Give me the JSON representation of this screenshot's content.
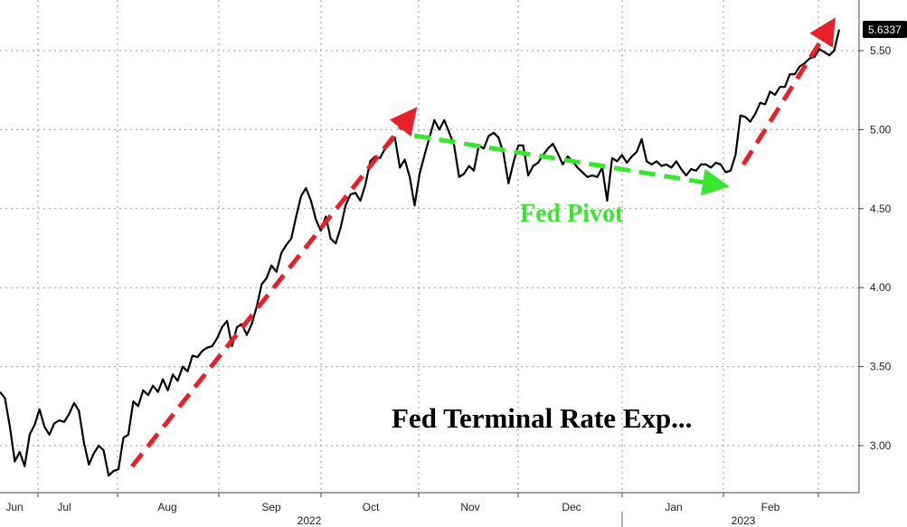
{
  "chart_data": {
    "type": "line",
    "title": "Fed Terminal Rate Exp...",
    "last_value_label": "5.6337",
    "annotation_text": "Fed Pivot",
    "y_ticks": [
      "3.00",
      "3.50",
      "4.00",
      "4.50",
      "5.00",
      "5.50"
    ],
    "y_tick_values": [
      3.0,
      3.5,
      4.0,
      4.5,
      5.0,
      5.5
    ],
    "ylim": [
      2.72,
      5.72
    ],
    "grid": true,
    "x_month_labels": [
      "Jun",
      "Jul",
      "Aug",
      "Sep",
      "Oct",
      "Nov",
      "Dec",
      "Jan",
      "Feb"
    ],
    "x_month_positions": [
      16,
      71,
      185,
      300,
      410,
      520,
      632,
      745,
      852
    ],
    "x_year_labels": [
      "2022",
      "2023"
    ],
    "x_year_positions": [
      342,
      822
    ],
    "colors": {
      "line": "#000000",
      "trend_up": "#e8202a",
      "pivot": "#39e52f",
      "grid": "#9a9a9a",
      "badge_bg": "#000000",
      "badge_text": "#ffffff"
    },
    "series": [
      {
        "values": [
          3.34,
          3.3,
          3.12,
          2.9,
          2.96,
          2.87,
          3.07,
          3.13,
          3.23,
          3.12,
          3.07,
          3.14,
          3.16,
          3.15,
          3.2,
          3.27,
          3.22,
          3.02,
          2.88,
          2.95,
          3.0,
          2.97,
          2.81,
          2.84,
          2.85,
          3.05,
          3.07,
          3.28,
          3.25,
          3.35,
          3.32,
          3.38,
          3.34,
          3.42,
          3.35,
          3.45,
          3.41,
          3.5,
          3.47,
          3.57,
          3.56,
          3.6,
          3.62,
          3.63,
          3.68,
          3.75,
          3.79,
          3.63,
          3.75,
          3.77,
          3.7,
          3.77,
          3.88,
          4.02,
          4.06,
          4.14,
          4.1,
          4.22,
          4.27,
          4.31,
          4.45,
          4.58,
          4.63,
          4.55,
          4.43,
          4.36,
          4.45,
          4.31,
          4.28,
          4.38,
          4.52,
          4.59,
          4.6,
          4.55,
          4.65,
          4.8,
          4.83,
          4.82,
          4.88,
          4.91,
          4.95,
          4.76,
          4.81,
          4.7,
          4.52,
          4.72,
          4.84,
          4.95,
          5.06,
          5.0,
          5.06,
          4.98,
          4.9,
          4.7,
          4.72,
          4.77,
          4.74,
          4.9,
          4.88,
          4.96,
          4.98,
          4.95,
          4.85,
          4.66,
          4.79,
          4.9,
          4.9,
          4.71,
          4.77,
          4.79,
          4.84,
          4.88,
          4.91,
          4.85,
          4.78,
          4.83,
          4.8,
          4.76,
          4.73,
          4.7,
          4.71,
          4.7,
          4.76,
          4.55,
          4.82,
          4.8,
          4.84,
          4.79,
          4.83,
          4.86,
          4.94,
          4.8,
          4.78,
          4.8,
          4.77,
          4.78,
          4.76,
          4.8,
          4.75,
          4.71,
          4.75,
          4.74,
          4.78,
          4.78,
          4.76,
          4.79,
          4.78,
          4.73,
          4.74,
          4.84,
          5.09,
          5.08,
          5.05,
          5.1,
          5.17,
          5.16,
          5.24,
          5.22,
          5.27,
          5.27,
          5.35,
          5.35,
          5.4,
          5.42,
          5.45,
          5.46,
          5.51,
          5.49,
          5.47,
          5.5,
          5.6337
        ]
      }
    ],
    "x_range": [
      0,
      928
    ]
  }
}
